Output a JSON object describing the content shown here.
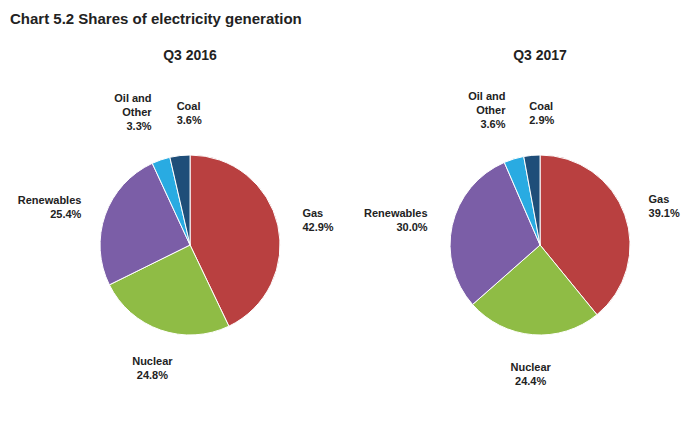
{
  "title": "Chart 5.2 Shares of electricity generation",
  "chart_data": [
    {
      "type": "pie",
      "title": "Q3 2016",
      "categories": [
        "Gas",
        "Nuclear",
        "Renewables",
        "Oil and\nOther",
        "Coal"
      ],
      "values": [
        42.9,
        24.8,
        25.4,
        3.3,
        3.6
      ],
      "value_labels": [
        "42.9%",
        "24.8%",
        "25.4%",
        "3.3%",
        "3.6%"
      ],
      "colors": [
        "#b94040",
        "#8fbc45",
        "#7b5ea7",
        "#29abe2",
        "#1f4e79"
      ],
      "data_labels": true
    },
    {
      "type": "pie",
      "title": "Q3 2017",
      "categories": [
        "Gas",
        "Nuclear",
        "Renewables",
        "Oil and\nOther",
        "Coal"
      ],
      "values": [
        39.1,
        24.4,
        30.0,
        3.6,
        2.9
      ],
      "value_labels": [
        "39.1%",
        "24.4%",
        "30.0%",
        "3.6%",
        "2.9%"
      ],
      "colors": [
        "#b94040",
        "#8fbc45",
        "#7b5ea7",
        "#29abe2",
        "#1f4e79"
      ],
      "data_labels": true
    }
  ]
}
